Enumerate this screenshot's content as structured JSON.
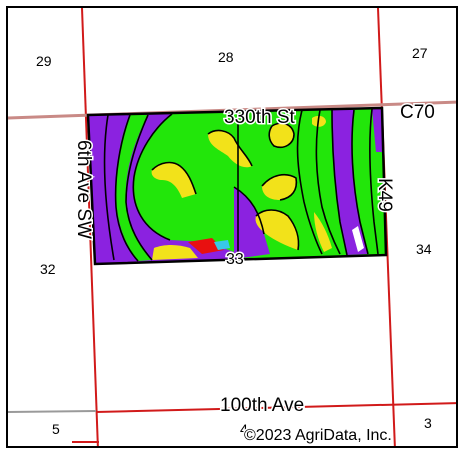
{
  "sections": {
    "s29": "29",
    "s28": "28",
    "s27": "27",
    "s32": "32",
    "s33": "33",
    "s34": "34",
    "s5": "5",
    "s4": "4",
    "s3": "3"
  },
  "roads": {
    "street_330th": "330th St",
    "c70": "C70",
    "ave_6th_sw": "6th Ave SW",
    "k49": "K49",
    "ave_100th": "100th Ave"
  },
  "copyright": "©2023 AgriData, Inc.",
  "colors": {
    "section_line": "#d11a1a",
    "road_line": "#c98a86",
    "soil_purple": "#8b22e0",
    "soil_green": "#22e60a",
    "soil_yellow": "#f2e21a",
    "soil_red": "#e81010",
    "soil_cyan": "#38c8e8",
    "field_border": "#000000"
  }
}
